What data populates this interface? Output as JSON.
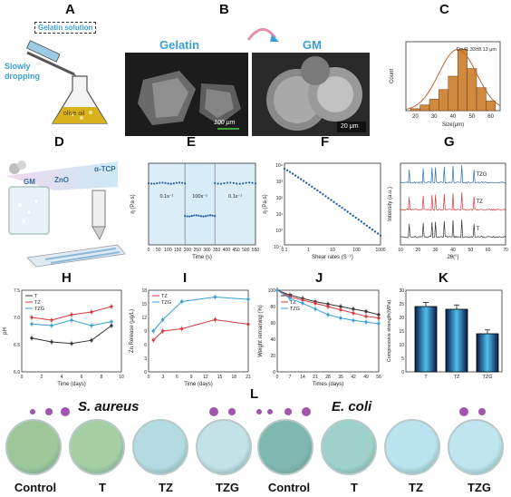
{
  "panels": {
    "A": {
      "letter": "A",
      "box_label": "Gelatin solution",
      "side_label": "Slowly dropping",
      "flask_label": "olive oil"
    },
    "B": {
      "letter": "B",
      "left_title": "Gelatin",
      "right_title": "GM",
      "left_scale": "100 μm",
      "right_scale": "20 μm"
    },
    "C": {
      "letter": "C",
      "annotation": "D=41.33±8.13 μm",
      "xlabel": "Size(μm)",
      "ylabel": "Count",
      "xticks": [
        "20",
        "30",
        "40",
        "50",
        "60"
      ]
    },
    "D": {
      "letter": "D",
      "labels": [
        "GM",
        "ZnO",
        "α-TCP"
      ]
    },
    "E": {
      "letter": "E",
      "xlabel": "Time (s)",
      "ylabel": "η (Pa·s)",
      "rates": [
        "0.1s⁻¹",
        "100s⁻¹",
        "0.1s⁻¹"
      ]
    },
    "F": {
      "letter": "F",
      "xlabel": "Shear rates (S⁻¹)",
      "ylabel": "η (Pa·s)"
    },
    "G": {
      "letter": "G",
      "xlabel": "2θ(°)",
      "ylabel": "Intensity (a.u.)",
      "series": [
        "TZG",
        "TZ",
        "T"
      ]
    },
    "H": {
      "letter": "H",
      "xlabel": "Time (days)",
      "ylabel": "pH",
      "legend": [
        "T",
        "TZ",
        "TZG"
      ]
    },
    "I": {
      "letter": "I",
      "xlabel": "Time (days)",
      "ylabel": "Zn Release (μg/L)",
      "legend": [
        "TZ",
        "TZG"
      ]
    },
    "J": {
      "letter": "J",
      "xlabel": "Times (days)",
      "ylabel": "Weight remaining (%)",
      "legend": [
        "T",
        "TZ",
        "TZG"
      ]
    },
    "K": {
      "letter": "K",
      "ylabel": "Compressive strength(MPa)",
      "categories": [
        "T",
        "TZ",
        "TZG"
      ]
    },
    "L": {
      "letter": "L",
      "left_title": "S. aureus",
      "right_title": "E. coli",
      "plates": [
        "Control",
        "T",
        "TZ",
        "TZG",
        "Control",
        "T",
        "TZ",
        "TZG"
      ]
    }
  },
  "chart_data": [
    {
      "panel": "C",
      "type": "bar",
      "categories": [
        "20",
        "25",
        "30",
        "35",
        "40",
        "45",
        "50",
        "55",
        "60"
      ],
      "values": [
        1,
        3,
        6,
        11,
        18,
        32,
        22,
        12,
        5
      ],
      "xlabel": "Size(μm)",
      "ylabel": "Count"
    },
    {
      "panel": "E",
      "type": "line",
      "x_ticks": [
        "0",
        "50",
        "100",
        "150",
        "200",
        "250",
        "300",
        "350",
        "400",
        "450",
        "500",
        "550"
      ],
      "segments": [
        {
          "range": [
            0,
            170
          ],
          "value": "high"
        },
        {
          "range": [
            170,
            340
          ],
          "value": "low"
        },
        {
          "range": [
            340,
            550
          ],
          "value": "high"
        }
      ]
    },
    {
      "panel": "F",
      "type": "scatter",
      "x_ticks": [
        "0.1",
        "1",
        "10",
        "100",
        "1000"
      ],
      "y_ticks": [
        "10⁴",
        "10³",
        "10²",
        "10¹",
        "10⁰",
        "10⁻¹"
      ]
    },
    {
      "panel": "G",
      "type": "line",
      "x_ticks": [
        "10",
        "20",
        "30",
        "40",
        "50",
        "60",
        "70"
      ],
      "series": [
        {
          "name": "TZG",
          "color": "#2b6fb0"
        },
        {
          "name": "TZ",
          "color": "#d43b3b"
        },
        {
          "name": "T",
          "color": "#333333"
        }
      ]
    },
    {
      "panel": "H",
      "type": "line",
      "x": [
        1,
        3,
        5,
        7,
        9
      ],
      "x_ticks": [
        "0",
        "2",
        "4",
        "6",
        "8",
        "10"
      ],
      "y_ticks": [
        "6.0",
        "6.5",
        "7.0",
        "7.5"
      ],
      "ylim": [
        6.0,
        7.5
      ],
      "series": [
        {
          "name": "T",
          "values": [
            6.62,
            6.55,
            6.52,
            6.58,
            6.85
          ]
        },
        {
          "name": "TZ",
          "values": [
            7.0,
            6.95,
            7.05,
            7.1,
            7.2
          ]
        },
        {
          "name": "TZG",
          "values": [
            6.88,
            6.85,
            6.95,
            6.85,
            6.92
          ]
        }
      ]
    },
    {
      "panel": "I",
      "type": "line",
      "x": [
        1,
        3,
        7,
        14,
        21
      ],
      "x_ticks": [
        "0",
        "3",
        "6",
        "9",
        "12",
        "15",
        "18",
        "21"
      ],
      "y_ticks": [
        "0",
        "3",
        "6",
        "9",
        "12",
        "15",
        "18"
      ],
      "ylim": [
        0,
        18
      ],
      "series": [
        {
          "name": "TZ",
          "values": [
            7,
            9,
            9.5,
            11.5,
            10.5
          ]
        },
        {
          "name": "TZG",
          "values": [
            9,
            11.5,
            15.5,
            16.5,
            16
          ]
        }
      ]
    },
    {
      "panel": "J",
      "type": "line",
      "x": [
        0,
        7,
        14,
        21,
        28,
        35,
        42,
        49,
        56
      ],
      "x_ticks": [
        "0",
        "7",
        "14",
        "21",
        "28",
        "35",
        "42",
        "49",
        "56"
      ],
      "y_ticks": [
        "0",
        "20",
        "40",
        "60",
        "80",
        "100"
      ],
      "ylim": [
        0,
        100
      ],
      "series": [
        {
          "name": "T",
          "values": [
            100,
            94,
            90,
            86,
            83,
            80,
            77,
            74,
            70
          ]
        },
        {
          "name": "TZ",
          "values": [
            100,
            92,
            88,
            84,
            80,
            76,
            72,
            68,
            66
          ]
        },
        {
          "name": "TZG",
          "values": [
            100,
            90,
            84,
            77,
            70,
            66,
            63,
            61,
            59
          ]
        }
      ]
    },
    {
      "panel": "K",
      "type": "bar",
      "categories": [
        "T",
        "TZ",
        "TZG"
      ],
      "values": [
        24,
        23,
        14
      ],
      "errors": [
        1.5,
        1.6,
        1.4
      ],
      "y_ticks": [
        "0",
        "5",
        "10",
        "15",
        "20",
        "25",
        "30"
      ],
      "ylim": [
        0,
        30
      ]
    }
  ],
  "colors": {
    "blue": "#3a9fd8",
    "red": "#d43b3b",
    "dark": "#333333",
    "bar_orange": "#d08a40",
    "purple": "#8a2a9a"
  }
}
